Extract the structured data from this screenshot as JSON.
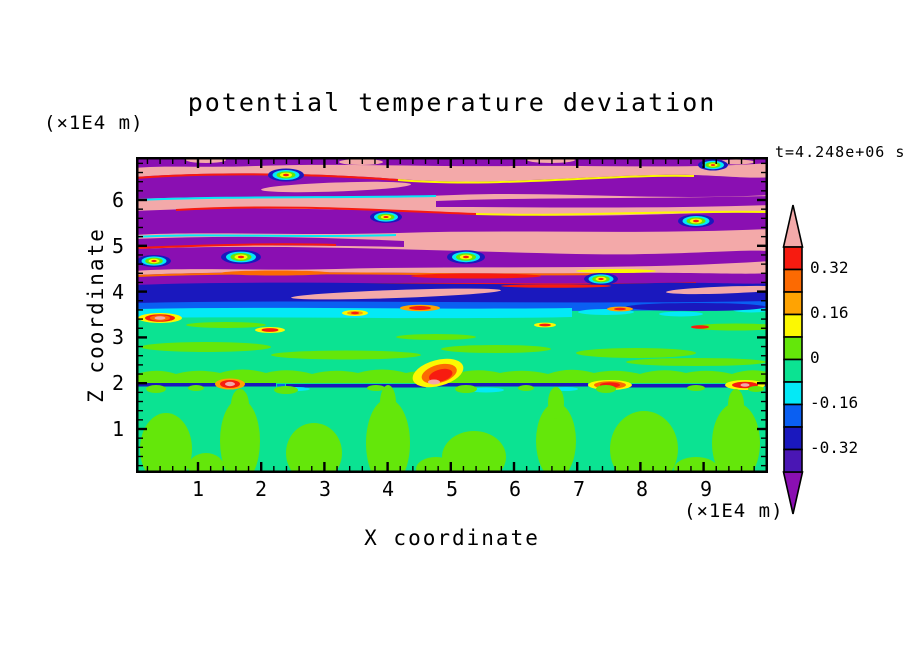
{
  "title": "potential temperature deviation",
  "timestamp": "t=4.248e+06 s",
  "axes": {
    "x": {
      "label": "X coordinate",
      "unit": "(×1E4 m)",
      "ticks": [
        "1",
        "2",
        "3",
        "4",
        "5",
        "6",
        "7",
        "8",
        "9"
      ],
      "range": [
        0,
        10
      ]
    },
    "z": {
      "label": "Z coordinate",
      "unit": "(×1E4 m)",
      "ticks": [
        "6",
        "5",
        "4",
        "3",
        "2",
        "1"
      ],
      "range": [
        0,
        7
      ]
    }
  },
  "colorbar": {
    "labels": [
      "0.32",
      "0.16",
      "0",
      "-0.16",
      "-0.32"
    ],
    "levels_top_to_bottom": [
      "#F71B10",
      "#FC6A02",
      "#FFA302",
      "#FCF802",
      "#64E70A",
      "#0BE392",
      "#04E9F6",
      "#0A5FF2",
      "#1A18BE",
      "#4A16B4"
    ],
    "above_max_color": "#F3A9A9",
    "below_min_color": "#8A0FB2"
  },
  "palette": {
    "pink": "#F3A9A9",
    "red": "#F71B10",
    "orangered": "#FC6A02",
    "orange": "#FFA302",
    "yellow": "#FCF802",
    "chartreuse": "#64E70A",
    "springgreen": "#0BE392",
    "cyan": "#04E9F6",
    "blue": "#0A5FF2",
    "navy": "#1A18BE",
    "indigo": "#4A16B4",
    "purple": "#8A0FB2",
    "frame": "#000000"
  },
  "chart_data": {
    "type": "heatmap",
    "subtype": "filled-contour",
    "title": "potential temperature deviation",
    "time_label": "t=4.248e+06 s",
    "xlabel": "X coordinate",
    "x_unit": "×1E4 m",
    "x_range": [
      0,
      10
    ],
    "x_major_ticks": [
      1,
      2,
      3,
      4,
      5,
      6,
      7,
      8,
      9
    ],
    "ylabel": "Z coordinate",
    "y_unit": "×1E4 m",
    "y_range": [
      0,
      6.9
    ],
    "y_major_ticks": [
      1,
      2,
      3,
      4,
      5,
      6
    ],
    "contour_interval": 0.08,
    "contour_levels": [
      -0.4,
      -0.32,
      -0.24,
      -0.16,
      -0.08,
      0,
      0.08,
      0.16,
      0.24,
      0.32,
      0.4
    ],
    "level_colors_low_to_high": [
      "#8A0FB2",
      "#4A16B4",
      "#1A18BE",
      "#0A5FF2",
      "#04E9F6",
      "#0BE392",
      "#64E70A",
      "#FCF802",
      "#FFA302",
      "#FC6A02",
      "#F71B10",
      "#F3A9A9"
    ],
    "labeled_levels": [
      0.32,
      0.16,
      0,
      -0.16,
      -0.32
    ],
    "structure": [
      {
        "z_range": [
          4.3,
          6.9
        ],
        "values": "saturated ±0.4 and beyond",
        "description": "alternating quasi-horizontal gravity-wave bands: pink (>+0.4) and purple (<-0.4) ribbons slightly tilted, separated by thin rainbow fringes (red/orange/yellow/green/cyan/blue) with braided eddy swirls"
      },
      {
        "z_range": [
          3.9,
          4.3
        ],
        "values": "-0.4 to -0.16",
        "description": "strong cold layer: navy/blue band spanning full width with cyan base and embedded pink (>+0.4) diagonal streaks"
      },
      {
        "z_range": [
          2.1,
          3.9
        ],
        "values": "-0.08 to +0.08",
        "description": "near-zero region: spring-green background with scattered small warm lenses (yellow/orange/red cores up to >+0.4) and chartreuse patches"
      },
      {
        "z_range": [
          1.95,
          2.1
        ],
        "values": "-0.4 to -0.24 with >+0.4 spots",
        "description": "thin navy cold sheet at z=2 dotted with intense warm plumes (pink/red/orange/yellow)"
      },
      {
        "z_range": [
          0,
          1.95
        ],
        "values": "-0.08 to +0.08",
        "description": "convective boundary layer: chartreuse (0..+0.08) thermal plumes rising through spring-green (-0.08..0) background"
      }
    ]
  }
}
